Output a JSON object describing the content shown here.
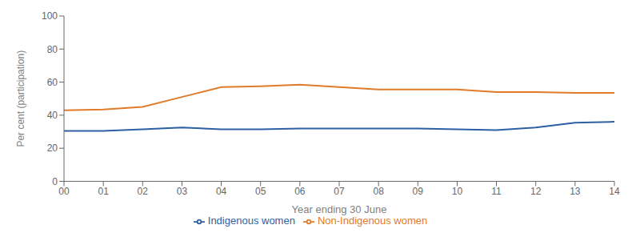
{
  "chart_data": {
    "type": "line",
    "categories": [
      "00",
      "01",
      "02",
      "03",
      "04",
      "05",
      "06",
      "07",
      "08",
      "09",
      "10",
      "11",
      "12",
      "13",
      "14"
    ],
    "series": [
      {
        "name": "Indigenous women",
        "color": "#2E5FA3",
        "values": [
          30.5,
          30.5,
          31.5,
          32.5,
          31.5,
          31.5,
          32.0,
          32.0,
          32.0,
          32.0,
          31.5,
          31.0,
          32.5,
          35.5,
          36.0
        ]
      },
      {
        "name": "Non-Indigenous women",
        "color": "#E07B2A",
        "values": [
          43.0,
          43.5,
          45.0,
          51.0,
          57.0,
          57.5,
          58.5,
          57.0,
          55.5,
          55.5,
          55.5,
          54.0,
          54.0,
          53.5,
          53.5
        ]
      }
    ],
    "ylim": [
      0,
      100
    ],
    "yticks": [
      0,
      20,
      40,
      60,
      80,
      100
    ],
    "xlabel": "Year ending 30 June",
    "ylabel": "Per cent (participation)",
    "grid": false,
    "legend": "bottom"
  }
}
